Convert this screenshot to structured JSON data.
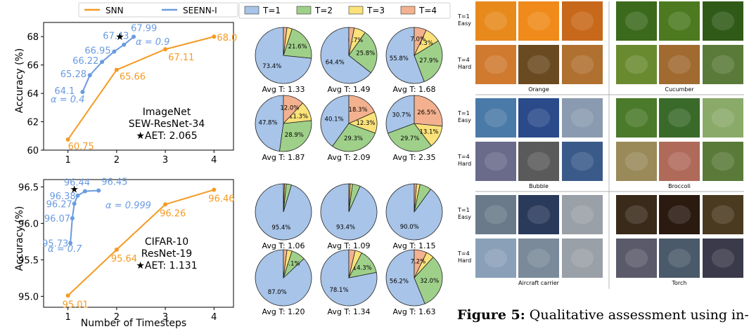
{
  "legend": {
    "snn": "SNN",
    "seenn": "SEENN-I"
  },
  "pie_legend": [
    "T=1",
    "T=2",
    "T=3",
    "T=4"
  ],
  "colors": {
    "snn": "#f59a23",
    "seenn": "#6a9be0",
    "t1": "#a8c4e8",
    "t2": "#9fd08a",
    "t3": "#fbe27a",
    "t4": "#f3b18f"
  },
  "xlabel": "Number of Timesteps",
  "ylabel": "Accuracy (%)",
  "chart_data": [
    {
      "type": "line",
      "annotation": [
        "ImageNet",
        "SEW-ResNet-34",
        "★AET: 2.065"
      ],
      "ylim": [
        60,
        69
      ],
      "xlim": [
        0.5,
        4.4
      ],
      "xticks": [
        1,
        2,
        3,
        4
      ],
      "yticks": [
        60,
        62,
        64,
        66,
        68
      ],
      "star": {
        "x": 2.065,
        "y": 68.0
      },
      "alpha_labels": [
        "α = 0.4",
        "α = 0.9"
      ],
      "series": [
        {
          "name": "SNN",
          "x": [
            1,
            2,
            3,
            4
          ],
          "y": [
            60.75,
            65.66,
            67.11,
            68.0
          ],
          "labels": [
            "60.75",
            "65.66",
            "67.11",
            "68.0"
          ]
        },
        {
          "name": "SEENN-I",
          "x": [
            1.3,
            1.45,
            1.7,
            1.95,
            2.15,
            2.35
          ],
          "y": [
            64.1,
            65.28,
            66.22,
            66.95,
            67.43,
            67.99
          ],
          "labels": [
            "64.1",
            "65.28",
            "66.22",
            "66.95",
            "67.43",
            "67.99"
          ]
        }
      ]
    },
    {
      "type": "line",
      "annotation": [
        "CIFAR-10",
        "ResNet-19",
        "★AET: 1.131"
      ],
      "ylim": [
        94.85,
        96.6
      ],
      "xlim": [
        0.5,
        4.4
      ],
      "xticks": [
        1,
        2,
        3,
        4
      ],
      "yticks": [
        95.0,
        95.5,
        96.0,
        96.5
      ],
      "star": {
        "x": 1.131,
        "y": 96.47
      },
      "alpha_labels": [
        "α = 0.7",
        "α = 0.999"
      ],
      "series": [
        {
          "name": "SNN",
          "x": [
            1,
            2,
            3,
            4
          ],
          "y": [
            95.01,
            95.64,
            96.26,
            96.46
          ],
          "labels": [
            "95.01",
            "95.64",
            "96.26",
            "96.46"
          ]
        },
        {
          "name": "SEENN-I",
          "x": [
            1.05,
            1.09,
            1.13,
            1.2,
            1.35,
            1.63
          ],
          "y": [
            95.73,
            96.07,
            96.27,
            96.38,
            96.44,
            96.45
          ],
          "labels": [
            "95.73",
            "96.07",
            "96.27",
            "96.38",
            "96.44",
            "96.45"
          ]
        }
      ]
    },
    {
      "type": "pie",
      "series_names": [
        "T=1",
        "T=2",
        "T=3",
        "T=4"
      ],
      "pies": [
        {
          "avg": "Avg T: 1.33",
          "values": [
            73.4,
            21.6,
            3.0,
            2.0
          ],
          "labels": [
            "73.4%",
            "21.6%",
            "",
            ""
          ]
        },
        {
          "avg": "Avg T: 1.49",
          "values": [
            64.4,
            25.8,
            6.7,
            3.1
          ],
          "labels": [
            "64.4%",
            "25.8%",
            "6.7%",
            ""
          ]
        },
        {
          "avg": "Avg T: 1.68",
          "values": [
            55.8,
            27.9,
            9.3,
            7.0
          ],
          "labels": [
            "55.8%",
            "27.9%",
            "9.3%",
            "7.0%"
          ]
        },
        {
          "avg": "Avg T: 1.87",
          "values": [
            47.8,
            28.9,
            11.3,
            12.0
          ],
          "labels": [
            "47.8%",
            "28.9%",
            "11.3%",
            "12.0%"
          ]
        },
        {
          "avg": "Avg T: 2.09",
          "values": [
            40.1,
            29.3,
            12.3,
            18.3
          ],
          "labels": [
            "40.1%",
            "29.3%",
            "12.3%",
            "18.3%"
          ]
        },
        {
          "avg": "Avg T: 2.35",
          "values": [
            30.7,
            29.7,
            13.1,
            26.5
          ],
          "labels": [
            "30.7%",
            "29.7%",
            "13.1%",
            "26.5%"
          ]
        },
        {
          "avg": "Avg T: 1.06",
          "values": [
            95.4,
            3.0,
            1.0,
            0.6
          ],
          "labels": [
            "95.4%",
            "",
            "",
            ""
          ]
        },
        {
          "avg": "Avg T: 1.09",
          "values": [
            93.4,
            4.5,
            1.3,
            0.8
          ],
          "labels": [
            "93.4%",
            "",
            "",
            ""
          ]
        },
        {
          "avg": "Avg T: 1.15",
          "values": [
            90.0,
            6.7,
            2.0,
            1.3
          ],
          "labels": [
            "90.0%",
            "",
            "",
            ""
          ]
        },
        {
          "avg": "Avg T: 1.20",
          "values": [
            87.0,
            8.1,
            2.9,
            2.0
          ],
          "labels": [
            "87.0%",
            "8.1%",
            "",
            ""
          ]
        },
        {
          "avg": "Avg T: 1.34",
          "values": [
            78.1,
            14.3,
            4.0,
            3.6
          ],
          "labels": [
            "78.1%",
            "14.3%",
            "",
            ""
          ]
        },
        {
          "avg": "Avg T: 1.63",
          "values": [
            56.2,
            32.0,
            4.6,
            7.2
          ],
          "labels": [
            "56.2%",
            "32.0%",
            "",
            "7.2%"
          ]
        }
      ]
    }
  ],
  "image_grid": {
    "row_labels": [
      [
        "T=1",
        "Easy"
      ],
      [
        "T=4",
        "Hard"
      ]
    ],
    "classes": [
      "Orange",
      "Cucumber",
      "Bubble",
      "Broccoli",
      "Aircraft carrier",
      "Torch"
    ],
    "tile_colors": [
      [
        [
          "#e8891c",
          "#f08a1a",
          "#c8681a"
        ],
        [
          "#3b6a1c",
          "#4d7a20",
          "#2f5a18"
        ],
        [
          "#d07a30",
          "#6a4a20",
          "#b07030"
        ],
        [
          "#6a8a30",
          "#a06a30",
          "#5a7a3a"
        ]
      ],
      [
        [
          "#4a7aa8",
          "#2a4a8a",
          "#8a9ab0"
        ],
        [
          "#4a7a2a",
          "#3a6a2a",
          "#8aaa6a"
        ],
        [
          "#6a6a8a",
          "#5a5a5a",
          "#3a5a8a"
        ],
        [
          "#9a8a5a",
          "#b06a5a",
          "#5a7a3a"
        ]
      ],
      [
        [
          "#6a7a8a",
          "#2a3a5a",
          "#9aa0a8"
        ],
        [
          "#3a2a1a",
          "#2a1a10",
          "#4a3a20"
        ],
        [
          "#8aa0b8",
          "#7a8a9a",
          "#9aa0a8"
        ],
        [
          "#5a5a6a",
          "#4a5a6a",
          "#3a3a4a"
        ]
      ]
    ]
  },
  "caption": {
    "bold": "Figure 5:",
    "text": " Qualitative assessment using in-"
  }
}
